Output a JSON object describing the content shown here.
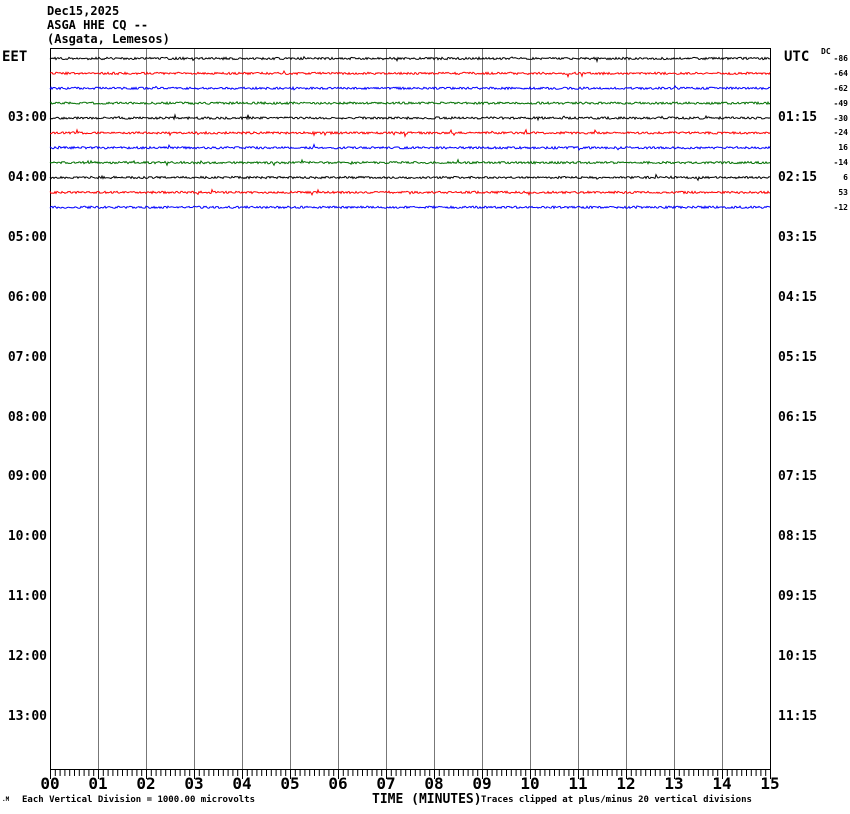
{
  "header": {
    "date": "Dec15,2025",
    "station_line": "ASGA HHE CQ --",
    "location_line": "(Asgata, Lemesos)"
  },
  "left_axis": {
    "title": "EET",
    "labels": [
      "03:00",
      "04:00",
      "05:00",
      "06:00",
      "07:00",
      "08:00",
      "09:00",
      "10:00",
      "11:00",
      "12:00",
      "13:00"
    ]
  },
  "right_axis": {
    "title": "UTC",
    "labels": [
      "01:15",
      "02:15",
      "03:15",
      "04:15",
      "05:15",
      "06:15",
      "07:15",
      "08:15",
      "09:15",
      "10:15",
      "11:15"
    ]
  },
  "dc_column": {
    "label": "DC",
    "values": [
      "-86",
      "-64",
      "-62",
      "-49",
      "-30",
      "-24",
      "16",
      "-14",
      "6",
      "53",
      "-12"
    ]
  },
  "x_axis": {
    "title": "TIME (MINUTES)",
    "labels": [
      "00",
      "01",
      "02",
      "03",
      "04",
      "05",
      "06",
      "07",
      "08",
      "09",
      "10",
      "11",
      "12",
      "13",
      "14",
      "15"
    ]
  },
  "footer": {
    "left_note": "Each Vertical Division = 1000.00 microvolts",
    "right_note": "Traces clipped at plus/minus 20 vertical divisions",
    "corner_mark": ".M"
  },
  "colors": {
    "black": "#000000",
    "red": "#ff0000",
    "blue": "#0000ff",
    "green": "#007000",
    "grid": "#777777",
    "frame": "#000000"
  },
  "chart_data": {
    "type": "line",
    "title": "Helicorder record ASGA HHE CQ -- (Asgata, Lemesos), Dec15,2025",
    "xlabel": "TIME (MINUTES)",
    "xlim": [
      0,
      15
    ],
    "minutes_per_line": 15,
    "minor_ticks_per_minute": 10,
    "grid": "vertical gridlines every 1 minute",
    "vertical_division_microvolts": 1000.0,
    "clip_divisions": 20,
    "note": "11 recorded trace lines of quiet background noise (amplitude well under 1 vertical division, occasional tiny spikes); rows after 04:30 EET are empty",
    "traces": [
      {
        "eet_start": "02:00",
        "color": "black",
        "dc": -86
      },
      {
        "eet_start": "02:15",
        "color": "red",
        "dc": -64
      },
      {
        "eet_start": "02:30",
        "color": "blue",
        "dc": -62
      },
      {
        "eet_start": "02:45",
        "color": "green",
        "dc": -49
      },
      {
        "eet_start": "03:00",
        "color": "black",
        "dc": -30
      },
      {
        "eet_start": "03:15",
        "color": "red",
        "dc": -24
      },
      {
        "eet_start": "03:30",
        "color": "blue",
        "dc": 16
      },
      {
        "eet_start": "03:45",
        "color": "green",
        "dc": -14
      },
      {
        "eet_start": "04:00",
        "color": "black",
        "dc": 6
      },
      {
        "eet_start": "04:15",
        "color": "red",
        "dc": 53
      },
      {
        "eet_start": "04:30",
        "color": "blue",
        "dc": -12
      }
    ]
  }
}
